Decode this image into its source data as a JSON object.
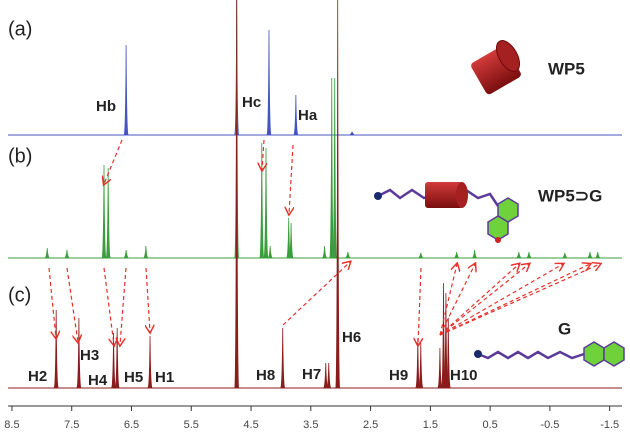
{
  "chart_data": {
    "type": "nmr",
    "xlim": [
      8.7,
      -1.84
    ],
    "xticks": [
      8.5,
      7.5,
      6.5,
      5.5,
      4.5,
      3.5,
      2.5,
      1.5,
      0.5,
      -0.5,
      -1.5
    ],
    "series": [
      {
        "name": "(a)",
        "color": "#4455c0",
        "x": [
          6.59,
          4.74,
          4.2,
          3.75,
          2.81
        ],
        "values": [
          90,
          140,
          105,
          40,
          3
        ]
      },
      {
        "name": "(b)",
        "color": "#3a9e3c",
        "x": [
          7.91,
          7.58,
          6.96,
          6.89,
          6.59,
          6.26,
          4.74,
          4.32,
          4.25,
          4.18,
          3.87,
          3.83,
          3.27,
          3.15,
          3.1,
          2.88,
          1.66,
          1.06,
          0.76,
          0.02,
          -0.15,
          -0.75,
          -1.17,
          -1.3
        ],
        "values": [
          10,
          8,
          93,
          90,
          8,
          12,
          270,
          115,
          110,
          12,
          40,
          35,
          12,
          180,
          180,
          6,
          5,
          6,
          8,
          6,
          6,
          5,
          6,
          6
        ]
      },
      {
        "name": "(c)",
        "color": "#8b1c1c",
        "x": [
          7.76,
          7.38,
          6.8,
          6.74,
          6.19,
          4.74,
          3.97,
          3.25,
          3.2,
          3.05,
          1.71,
          1.66,
          1.34,
          1.28,
          1.24,
          1.2
        ],
        "values": [
          78,
          70,
          55,
          60,
          52,
          400,
          60,
          25,
          25,
          400,
          50,
          45,
          40,
          105,
          95,
          70
        ]
      }
    ],
    "annotations": [
      "Hb",
      "Hc",
      "Ha",
      "WP5",
      "WP5⊃G",
      "H2",
      "H3",
      "H4",
      "H5",
      "H1",
      "H8",
      "H7",
      "H6",
      "H9",
      "H10",
      "G"
    ]
  }
}
